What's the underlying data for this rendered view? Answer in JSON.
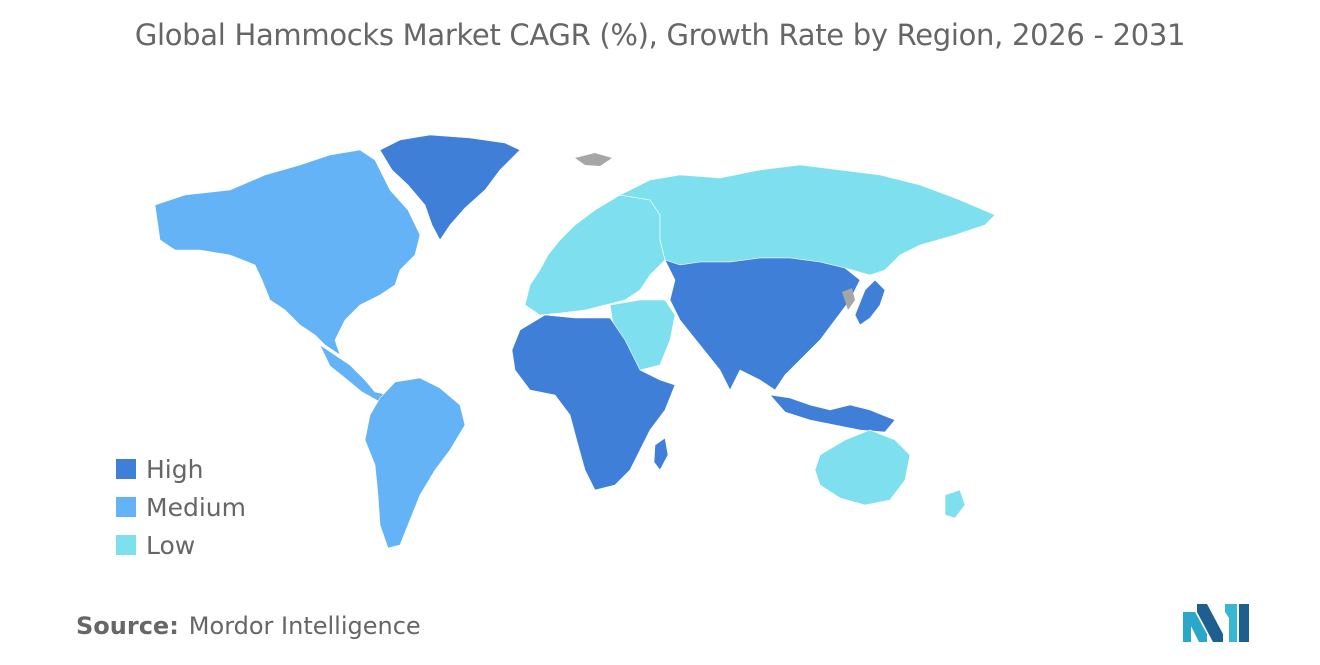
{
  "title": "Global Hammocks Market CAGR (%), Growth Rate by Region, 2026 - 2031",
  "legend": [
    {
      "label": "High",
      "color": "#3f7fd8"
    },
    {
      "label": "Medium",
      "color": "#63b3f6"
    },
    {
      "label": "Low",
      "color": "#7ee0ef"
    }
  ],
  "no_data_color": "#a6a6a6",
  "regions": {
    "north_america": "Medium",
    "greenland": "High",
    "south_america": "Medium",
    "europe": "Low",
    "russia": "Low",
    "middle_east": "Low",
    "africa": "High",
    "asia_pacific": "High",
    "australia_nz": "Low"
  },
  "source": {
    "key": "Source:",
    "value": "Mordor Intelligence"
  },
  "logo": "mordor-intelligence-logo"
}
